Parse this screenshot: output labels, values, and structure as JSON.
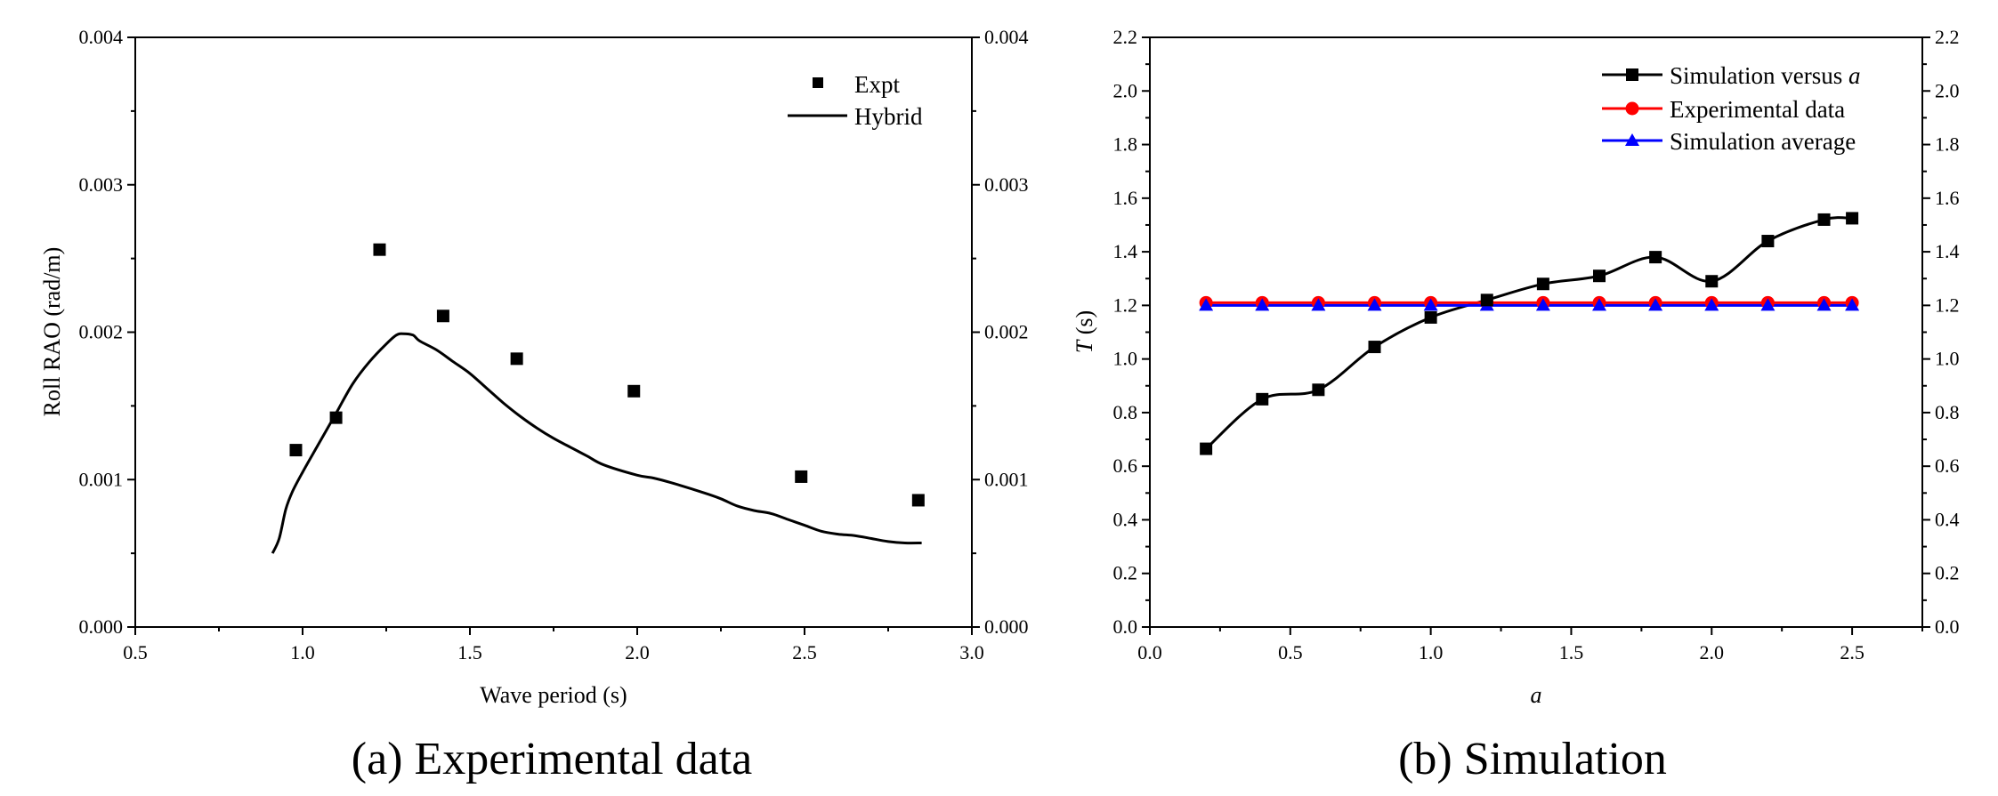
{
  "captions": {
    "left": "(a) Experimental data",
    "right": "(b) Simulation"
  },
  "chart_data": [
    {
      "type": "scatter",
      "xlabel": "Wave period (s)",
      "ylabel": "Roll RAO (rad/m)",
      "xlim": [
        0.5,
        3.0
      ],
      "ylim": [
        0.0,
        0.004
      ],
      "x_ticks": [
        "0.5",
        "1.0",
        "1.5",
        "2.0",
        "2.5",
        "3.0"
      ],
      "y_ticks": [
        "0.000",
        "0.001",
        "0.002",
        "0.003",
        "0.004"
      ],
      "grid": false,
      "legend_position": "top-right",
      "series": [
        {
          "name": "Expt",
          "style": "square-markers",
          "color": "#000000",
          "x": [
            0.98,
            1.1,
            1.23,
            1.42,
            1.64,
            1.99,
            2.49,
            2.84
          ],
          "y": [
            0.0012,
            0.00142,
            0.00256,
            0.00211,
            0.00182,
            0.0016,
            0.00102,
            0.00086
          ]
        },
        {
          "name": "Hybrid",
          "style": "line",
          "color": "#000000",
          "x": [
            0.91,
            0.93,
            0.95,
            0.97,
            1.0,
            1.05,
            1.1,
            1.15,
            1.2,
            1.25,
            1.28,
            1.3,
            1.33,
            1.35,
            1.4,
            1.45,
            1.5,
            1.55,
            1.6,
            1.65,
            1.7,
            1.75,
            1.8,
            1.85,
            1.9,
            2.0,
            2.05,
            2.1,
            2.2,
            2.25,
            2.3,
            2.35,
            2.4,
            2.45,
            2.5,
            2.55,
            2.6,
            2.65,
            2.7,
            2.75,
            2.8,
            2.85
          ],
          "y": [
            0.0005,
            0.0006,
            0.0008,
            0.00092,
            0.00105,
            0.00125,
            0.00145,
            0.00165,
            0.0018,
            0.00192,
            0.00198,
            0.00199,
            0.00198,
            0.00194,
            0.00188,
            0.0018,
            0.00172,
            0.00162,
            0.00152,
            0.00143,
            0.00135,
            0.00128,
            0.00122,
            0.00116,
            0.0011,
            0.00103,
            0.00101,
            0.00098,
            0.00091,
            0.00087,
            0.00082,
            0.00079,
            0.00077,
            0.00073,
            0.00069,
            0.00065,
            0.00063,
            0.00062,
            0.0006,
            0.00058,
            0.00057,
            0.00057
          ]
        }
      ]
    },
    {
      "type": "line",
      "xlabel": "a",
      "ylabel_italic": "T",
      "ylabel_unit": " (s)",
      "xlim": [
        0.0,
        2.75
      ],
      "ylim": [
        0.0,
        2.2
      ],
      "x_ticks": [
        "0.0",
        "0.5",
        "1.0",
        "1.5",
        "2.0",
        "2.5"
      ],
      "y_ticks": [
        "0.0",
        "0.2",
        "0.4",
        "0.6",
        "0.8",
        "1.0",
        "1.2",
        "1.4",
        "1.6",
        "1.8",
        "2.0",
        "2.2"
      ],
      "grid": false,
      "legend_position": "top-right",
      "series": [
        {
          "name": "Simulation versus ",
          "name_italic_suffix": "a",
          "marker": "square",
          "color": "#000000",
          "x": [
            0.2,
            0.4,
            0.6,
            0.8,
            1.0,
            1.2,
            1.4,
            1.6,
            1.8,
            2.0,
            2.2,
            2.4,
            2.5
          ],
          "y": [
            0.665,
            0.85,
            0.885,
            1.045,
            1.155,
            1.22,
            1.28,
            1.31,
            1.38,
            1.29,
            1.44,
            1.52,
            1.525
          ]
        },
        {
          "name": "Experimental data",
          "marker": "circle",
          "color": "#ff0000",
          "x": [
            0.2,
            0.4,
            0.6,
            0.8,
            1.0,
            1.2,
            1.4,
            1.6,
            1.8,
            2.0,
            2.2,
            2.4,
            2.5
          ],
          "y": [
            1.21,
            1.21,
            1.21,
            1.21,
            1.21,
            1.21,
            1.21,
            1.21,
            1.21,
            1.21,
            1.21,
            1.21,
            1.21
          ]
        },
        {
          "name": "Simulation average",
          "marker": "triangle",
          "color": "#0000ff",
          "x": [
            0.2,
            0.4,
            0.6,
            0.8,
            1.0,
            1.2,
            1.4,
            1.6,
            1.8,
            2.0,
            2.2,
            2.4,
            2.5
          ],
          "y": [
            1.2,
            1.2,
            1.2,
            1.2,
            1.2,
            1.2,
            1.2,
            1.2,
            1.2,
            1.2,
            1.2,
            1.2,
            1.2
          ]
        }
      ]
    }
  ]
}
